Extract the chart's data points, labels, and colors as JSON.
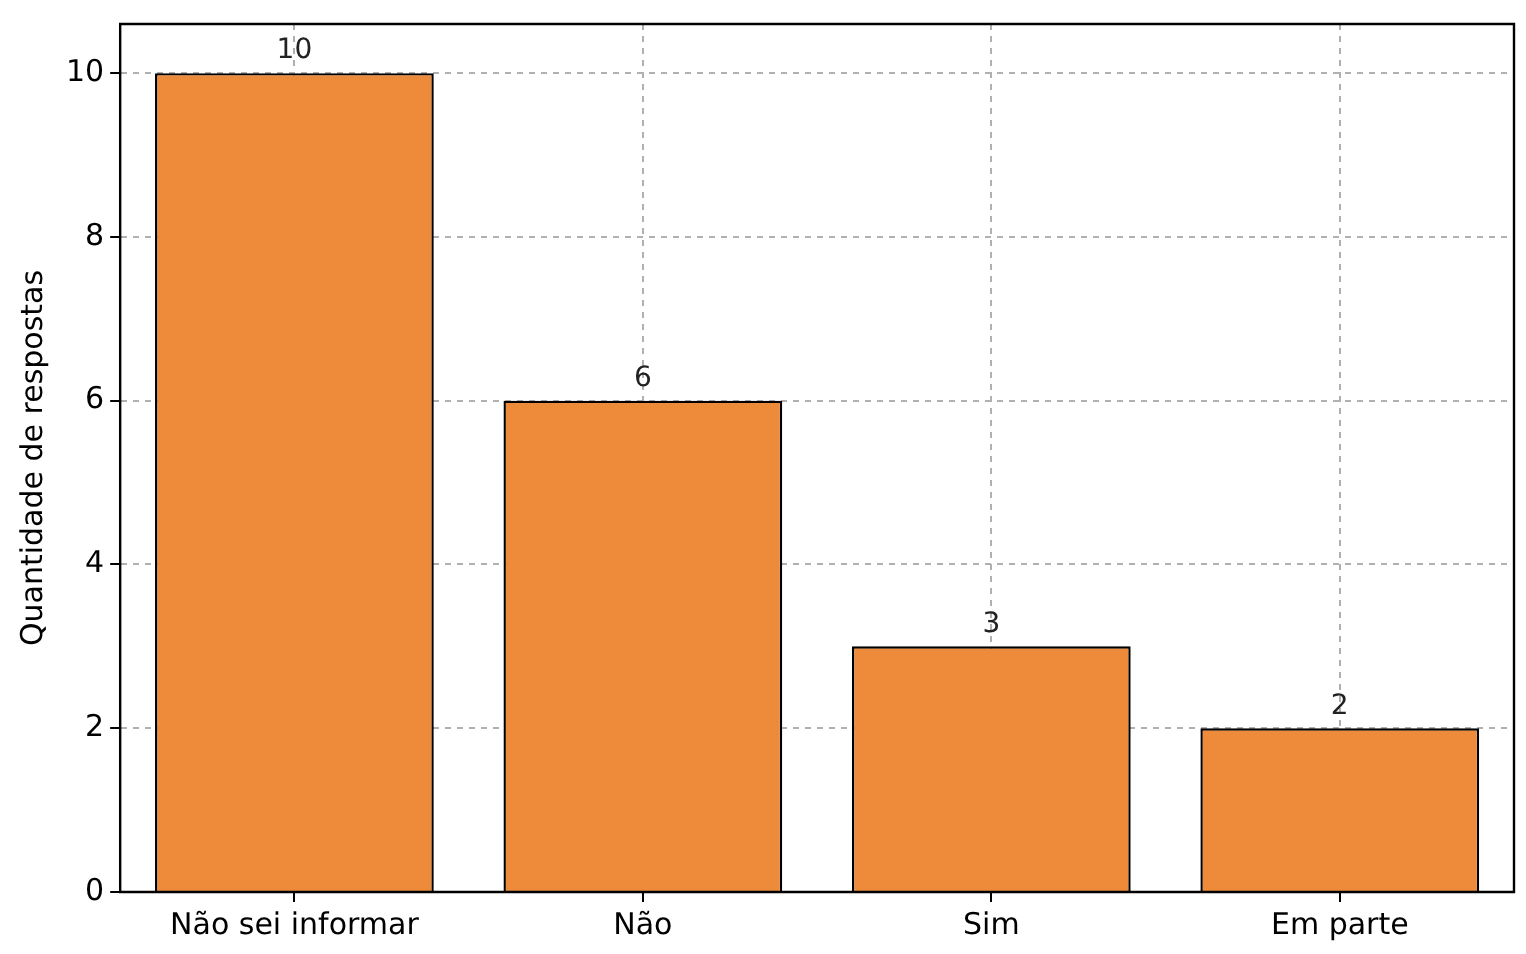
{
  "chart_data": {
    "type": "bar",
    "ylabel": "Quantidade de respostas",
    "categories": [
      "Não sei informar",
      "Não",
      "Sim",
      "Em parte"
    ],
    "values": [
      10,
      6,
      3,
      2
    ],
    "color": "#ed8b3a",
    "ylim": [
      0,
      10.6
    ],
    "yticks": [
      0,
      2,
      4,
      6,
      8,
      10
    ],
    "grid": true,
    "data_labels": true
  }
}
